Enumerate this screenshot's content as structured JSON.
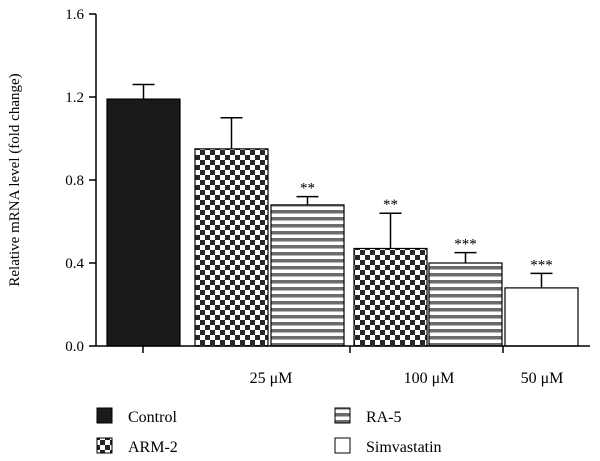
{
  "chart_data": {
    "type": "bar",
    "ylabel": "Relative mRNA level (fold change)",
    "ylim": [
      0,
      1.6
    ],
    "yticks": [
      "0.0",
      "0.4",
      "0.8",
      "1.2",
      "1.6"
    ],
    "grid": false,
    "legend_placement": "bottom",
    "bars": [
      {
        "series": "Control",
        "group": "",
        "value": 1.19,
        "error": 0.07,
        "sig": ""
      },
      {
        "series": "ARM-2",
        "group": "25 μM",
        "value": 0.95,
        "error": 0.15,
        "sig": ""
      },
      {
        "series": "RA-5",
        "group": "25 μM",
        "value": 0.68,
        "error": 0.04,
        "sig": "**"
      },
      {
        "series": "ARM-2",
        "group": "100 μM",
        "value": 0.47,
        "error": 0.17,
        "sig": "**"
      },
      {
        "series": "RA-5",
        "group": "100 μM",
        "value": 0.4,
        "error": 0.05,
        "sig": "***"
      },
      {
        "series": "Simvastatin",
        "group": "50 μM",
        "value": 0.28,
        "error": 0.07,
        "sig": "***"
      }
    ],
    "groups": [
      {
        "label": "25 μM"
      },
      {
        "label": "100 μM"
      },
      {
        "label": "50 μM"
      }
    ],
    "legend": [
      {
        "name": "Control",
        "pattern": "solid"
      },
      {
        "name": "ARM-2",
        "pattern": "checker"
      },
      {
        "name": "RA-5",
        "pattern": "stripes"
      },
      {
        "name": "Simvastatin",
        "pattern": "white"
      }
    ]
  }
}
